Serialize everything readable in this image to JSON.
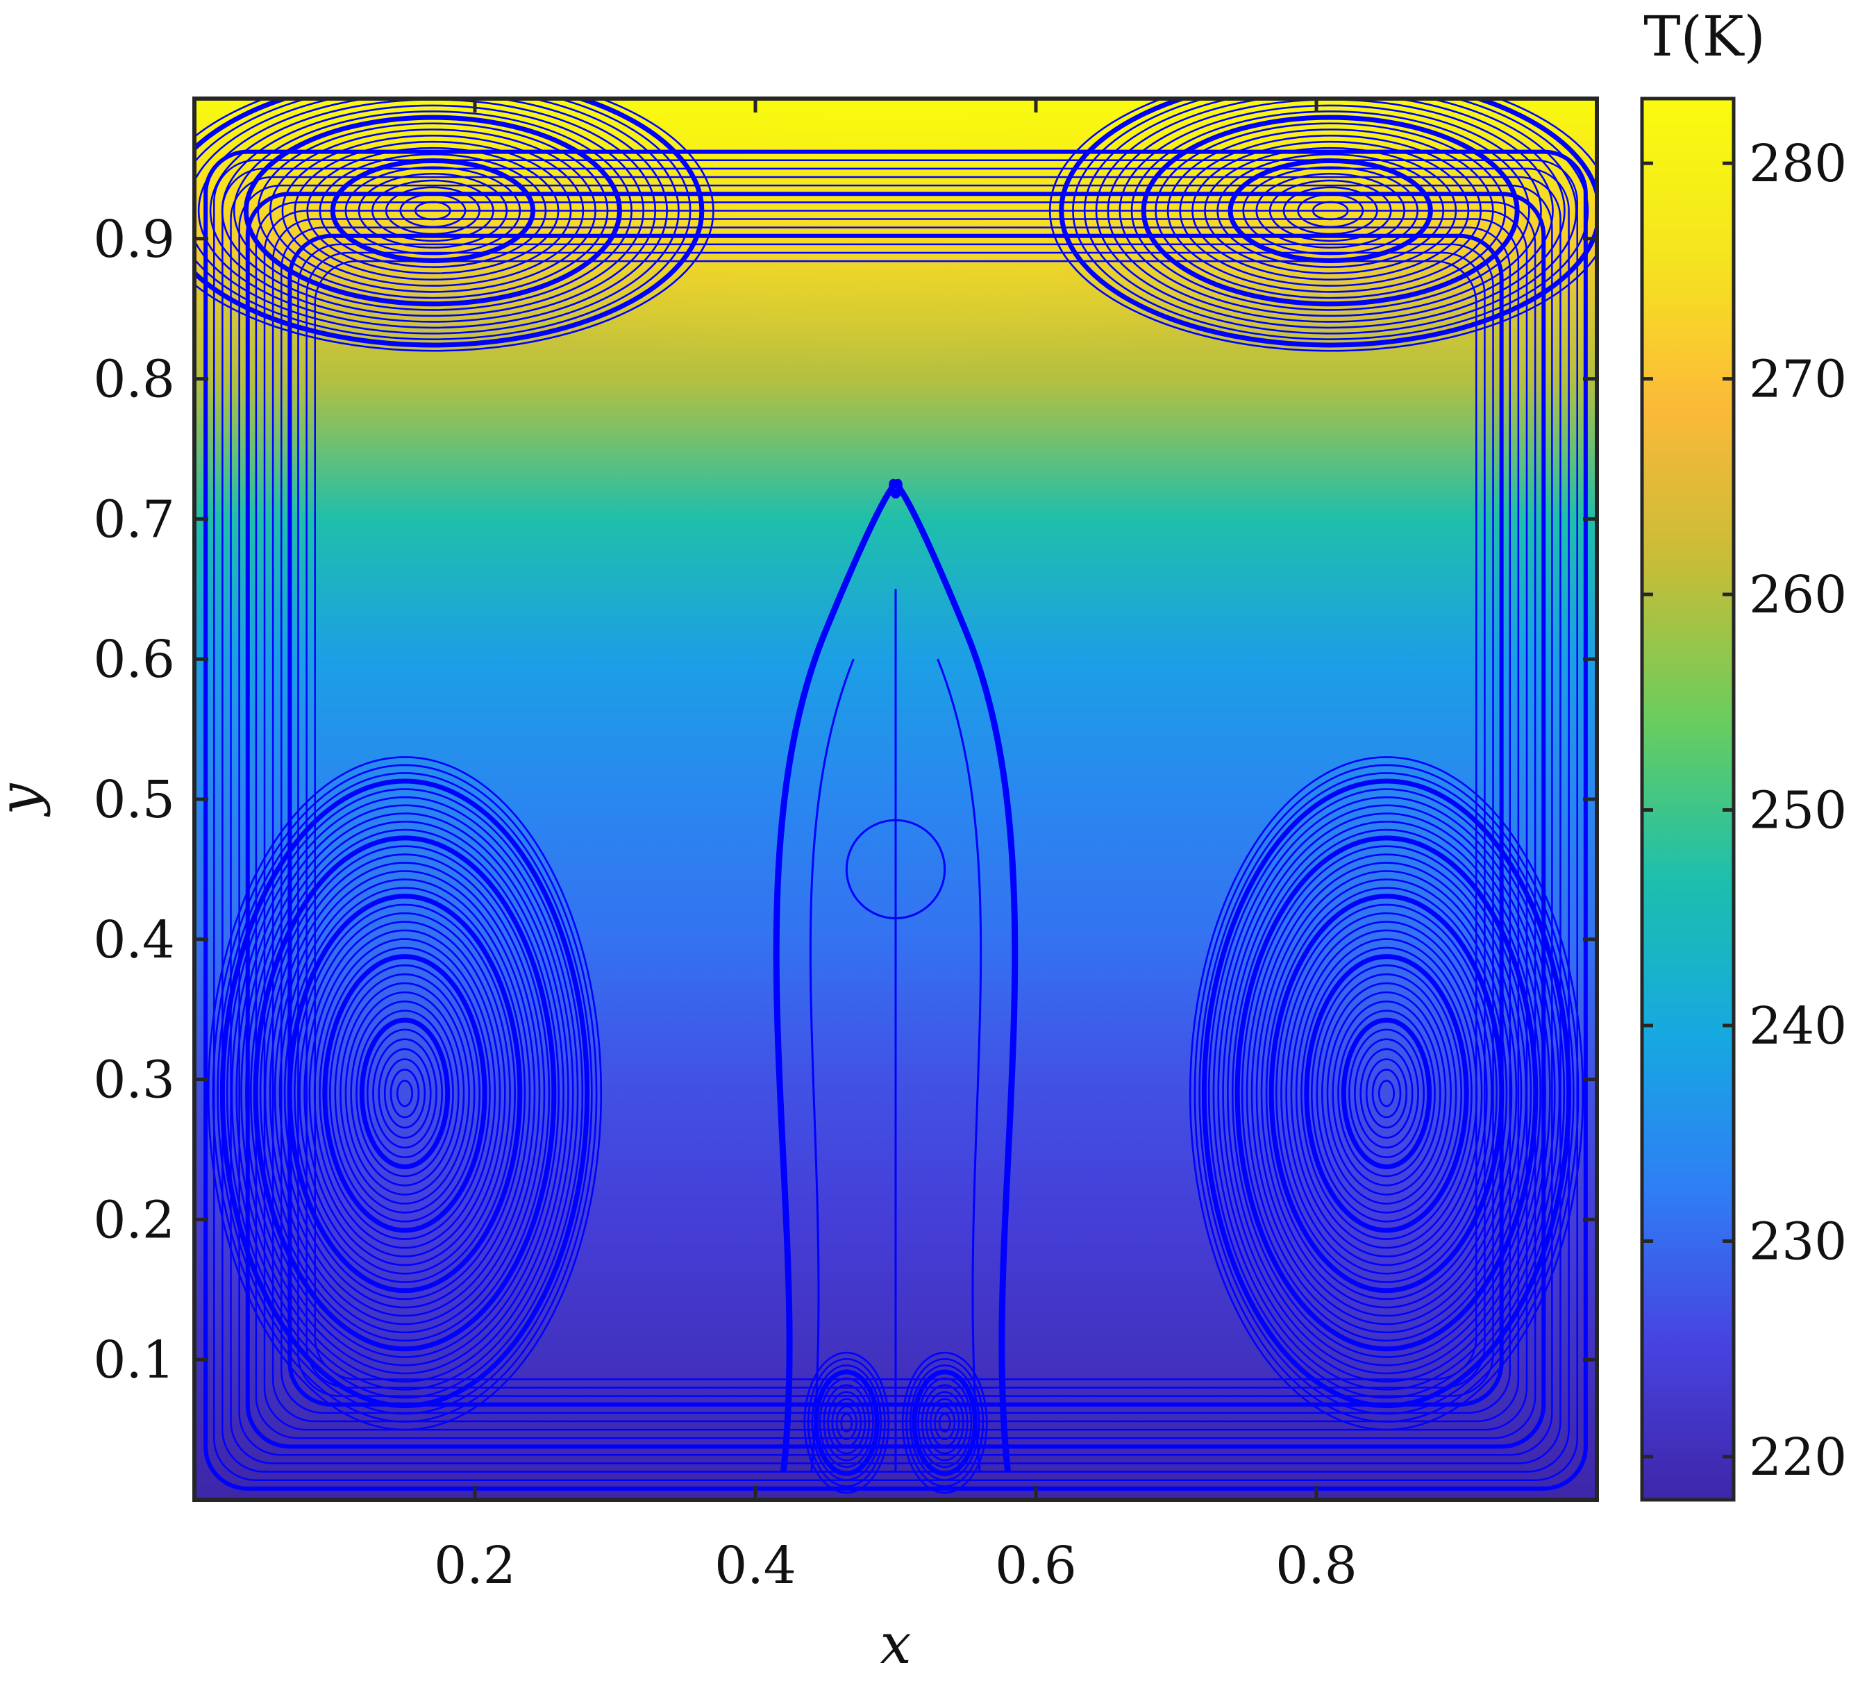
{
  "chart_data": {
    "type": "heatmap",
    "title": "",
    "xlabel": "x",
    "ylabel": "y",
    "xlim": [
      0.0,
      1.0
    ],
    "ylim": [
      0.0,
      1.0
    ],
    "x_ticks": [
      0.2,
      0.4,
      0.6,
      0.8
    ],
    "x_tick_labels": [
      "0.2",
      "0.4",
      "0.6",
      "0.8"
    ],
    "y_ticks": [
      0.1,
      0.2,
      0.3,
      0.4,
      0.5,
      0.6,
      0.7,
      0.8,
      0.9
    ],
    "y_tick_labels": [
      "0.1",
      "0.2",
      "0.3",
      "0.4",
      "0.5",
      "0.6",
      "0.7",
      "0.8",
      "0.9"
    ],
    "field": {
      "name": "Temperature",
      "description_of_gradient": "temperature increases with y; coolest near bottom (~218 K), warmest at top center (~283 K)",
      "y_profile": [
        {
          "y": 0.0,
          "T": 218
        },
        {
          "y": 0.1,
          "T": 221
        },
        {
          "y": 0.2,
          "T": 224
        },
        {
          "y": 0.3,
          "T": 227
        },
        {
          "y": 0.4,
          "T": 231
        },
        {
          "y": 0.5,
          "T": 234
        },
        {
          "y": 0.6,
          "T": 238
        },
        {
          "y": 0.7,
          "T": 247
        },
        {
          "y": 0.8,
          "T": 260
        },
        {
          "y": 0.9,
          "T": 272
        },
        {
          "y": 1.0,
          "T": 283
        }
      ]
    },
    "colorbar": {
      "title": "T(K)",
      "range": [
        218,
        283
      ],
      "ticks": [
        220,
        230,
        240,
        250,
        260,
        270,
        280
      ],
      "tick_labels": [
        "220",
        "230",
        "240",
        "250",
        "260",
        "270",
        "280"
      ],
      "colormap": "parula",
      "colormap_stops": [
        "#3e26a8",
        "#4743e0",
        "#2f7ef5",
        "#16a9e0",
        "#1ebfac",
        "#69cd5e",
        "#c6bd38",
        "#fbb939",
        "#f5e51f",
        "#f9fb0e"
      ]
    },
    "streamlines": {
      "color": "#0000ff",
      "description": "symmetric flow with two large lower vortices, two upper vortices near the top wall and two small vortices at the bottom center",
      "vortex_centers": [
        {
          "x": 0.15,
          "y": 0.29
        },
        {
          "x": 0.85,
          "y": 0.29
        },
        {
          "x": 0.17,
          "y": 0.92
        },
        {
          "x": 0.81,
          "y": 0.92
        },
        {
          "x": 0.465,
          "y": 0.055
        },
        {
          "x": 0.535,
          "y": 0.055
        }
      ]
    }
  }
}
